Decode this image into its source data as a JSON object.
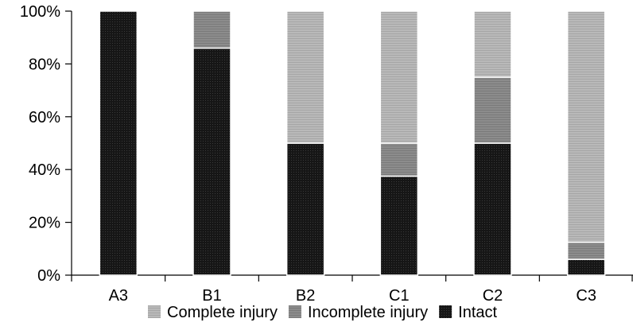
{
  "chart_data": {
    "type": "bar",
    "stacked": true,
    "percent_stacked": true,
    "categories": [
      "A3",
      "B1",
      "B2",
      "C1",
      "C2",
      "C3"
    ],
    "series": [
      {
        "name": "Intact",
        "values": [
          100,
          86,
          50,
          37.5,
          50,
          6
        ],
        "color": "#111111",
        "pattern": "pat-dark"
      },
      {
        "name": "Incomplete injury",
        "values": [
          0,
          14,
          0,
          12.5,
          25,
          6.5
        ],
        "color": "#8a8a8a",
        "pattern": "pat-mid"
      },
      {
        "name": "Complete injury",
        "values": [
          0,
          0,
          50,
          50,
          25,
          87.5
        ],
        "color": "#b3b3b3",
        "pattern": "pat-light"
      }
    ],
    "y_ticks": [
      "0%",
      "20%",
      "40%",
      "60%",
      "80%",
      "100%"
    ],
    "ylim": [
      0,
      100
    ],
    "grid": false,
    "legend_position": "bottom",
    "legend_order": [
      "Complete injury",
      "Incomplete injury",
      "Intact"
    ]
  }
}
